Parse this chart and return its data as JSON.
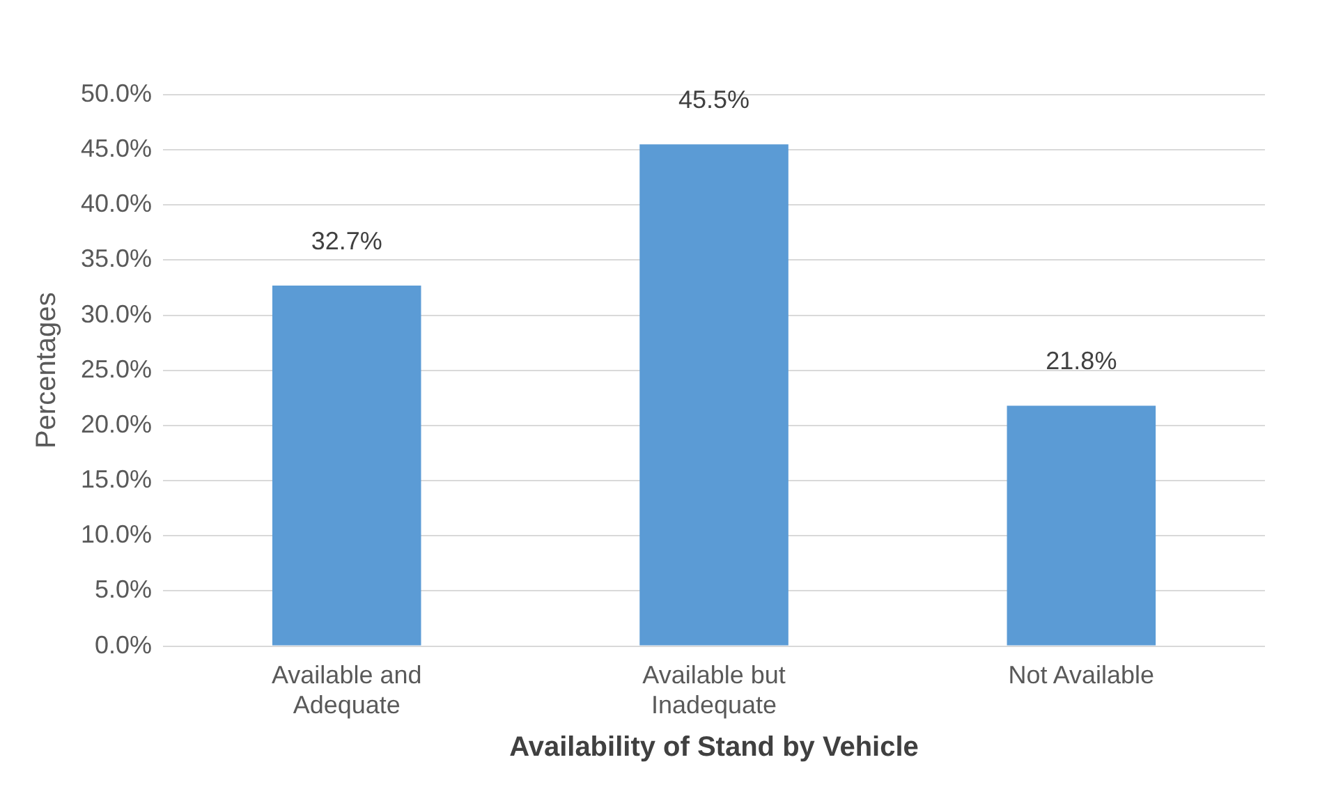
{
  "chart_data": {
    "type": "bar",
    "xlabel": "Availability of Stand by Vehicle",
    "ylabel": "Percentages",
    "categories": [
      "Available and Adequate",
      "Available but Inadequate",
      "Not Available"
    ],
    "values": [
      32.7,
      45.5,
      21.8
    ],
    "value_labels": [
      "32.7%",
      "45.5%",
      "21.8%"
    ],
    "color": "#5b9bd5",
    "ylim": [
      0,
      50
    ],
    "yticks": [
      {
        "value": 0,
        "label": "0.0%"
      },
      {
        "value": 5,
        "label": "5.0%"
      },
      {
        "value": 10,
        "label": "10.0%"
      },
      {
        "value": 15,
        "label": "15.0%"
      },
      {
        "value": 20,
        "label": "20.0%"
      },
      {
        "value": 25,
        "label": "25.0%"
      },
      {
        "value": 30,
        "label": "30.0%"
      },
      {
        "value": 35,
        "label": "35.0%"
      },
      {
        "value": 40,
        "label": "40.0%"
      },
      {
        "value": 45,
        "label": "45.0%"
      },
      {
        "value": 50,
        "label": "50.0%"
      }
    ],
    "grid": "y",
    "legend": false
  }
}
